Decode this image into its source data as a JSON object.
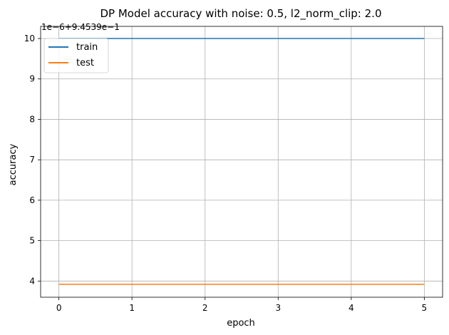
{
  "chart_data": {
    "type": "line",
    "title": "DP Model accuracy with noise: 0.5, l2_norm_clip: 2.0",
    "xlabel": "epoch",
    "ylabel": "accuracy",
    "offset_text": "1e−6+9.4539e−1",
    "y_units_note_value": "y tick values are in units of 1e-6 added to 0.94539",
    "x": [
      0,
      1,
      2,
      3,
      4,
      5
    ],
    "xlim": [
      -0.25,
      5.25
    ],
    "ylim": [
      3.6,
      10.3
    ],
    "xticks": [
      0,
      1,
      2,
      3,
      4,
      5
    ],
    "xtick_labels": [
      "0",
      "1",
      "2",
      "3",
      "4",
      "5"
    ],
    "yticks": [
      4,
      5,
      6,
      7,
      8,
      9,
      10
    ],
    "ytick_labels": [
      "4",
      "5",
      "6",
      "7",
      "8",
      "9",
      "10"
    ],
    "grid": true,
    "legend_position": "top-left",
    "series": [
      {
        "name": "train",
        "color": "#1f77b4",
        "values": [
          10.0,
          10.0,
          10.0,
          10.0,
          10.0,
          10.0
        ]
      },
      {
        "name": "test",
        "color": "#ff7f0e",
        "values": [
          3.92,
          3.92,
          3.92,
          3.92,
          3.92,
          3.92
        ]
      }
    ]
  }
}
